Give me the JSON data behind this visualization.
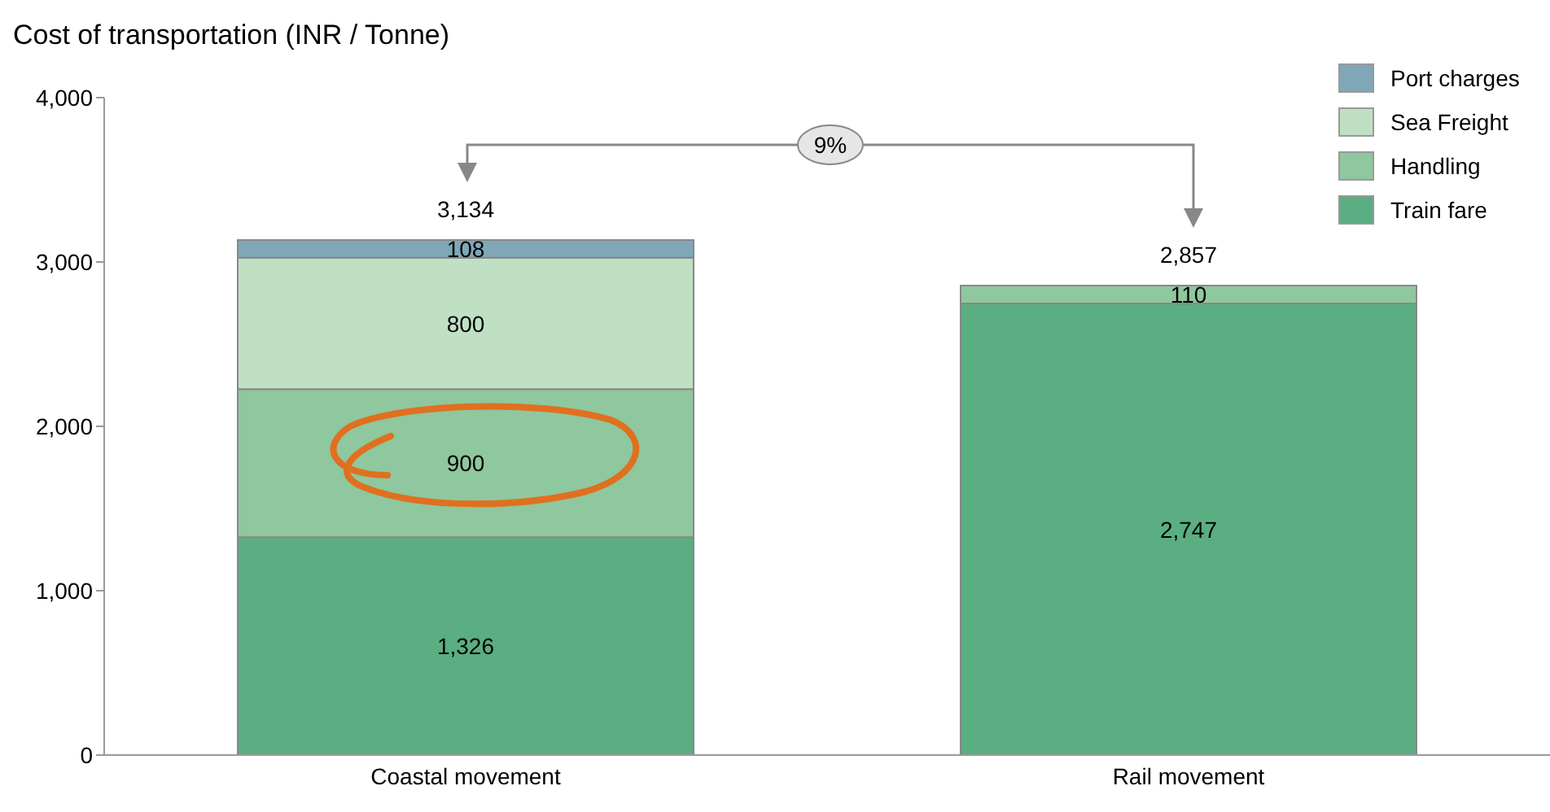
{
  "chart_data": {
    "type": "bar",
    "stacked": true,
    "ylabel": "Cost of transportation (INR / Tonne)",
    "categories": [
      "Coastal movement",
      "Rail movement"
    ],
    "series": [
      {
        "name": "Train fare",
        "color": "#5aae82",
        "values": [
          1326,
          2747
        ],
        "value_labels": [
          "1,326",
          "2,747"
        ]
      },
      {
        "name": "Handling",
        "color": "#8fc79e",
        "values": [
          900,
          110
        ],
        "value_labels": [
          "900",
          "110"
        ]
      },
      {
        "name": "Sea Freight",
        "color": "#c0e0c4",
        "values": [
          800,
          null
        ],
        "value_labels": [
          "800",
          null
        ]
      },
      {
        "name": "Port charges",
        "color": "#7fa7b8",
        "values": [
          108,
          null
        ],
        "value_labels": [
          "108",
          null
        ]
      }
    ],
    "totals": [
      "3,134",
      "2,857"
    ],
    "ylim": [
      0,
      4000
    ],
    "yticks": [
      {
        "value": 0,
        "label": "0"
      },
      {
        "value": 1000,
        "label": "1,000"
      },
      {
        "value": 2000,
        "label": "2,000"
      },
      {
        "value": 3000,
        "label": "3,000"
      },
      {
        "value": 4000,
        "label": "4,000"
      }
    ],
    "grid": false,
    "legend": "top right",
    "annotations": [
      "9%"
    ]
  }
}
